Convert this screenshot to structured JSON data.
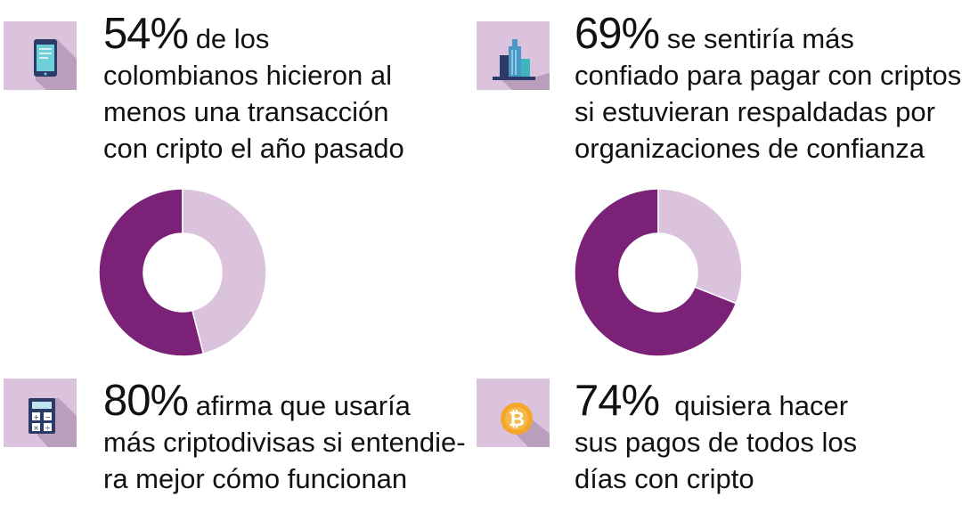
{
  "colors": {
    "primary": "#7b2278",
    "secondary": "#dcc3dd",
    "tile": "#dcc3dd"
  },
  "stats": [
    {
      "icon": "smartphone-icon",
      "percent": "54%",
      "line1": " de los",
      "rest": [
        "colombianos hicieron al",
        "menos una transacción",
        "con cripto el año pasado"
      ]
    },
    {
      "icon": "building-icon",
      "percent": "69%",
      "line1": " se sentiría más",
      "rest": [
        "confiado para pagar con criptos",
        "si estuvieran respaldadas por",
        "organizaciones de confianza"
      ]
    },
    {
      "icon": "calculator-icon",
      "percent": "80%",
      "line1": " afirma que usaría",
      "rest": [
        "más criptodivisas si entendie-",
        "ra mejor cómo funcionan"
      ]
    },
    {
      "icon": "bitcoin-icon",
      "percent": "74%",
      "line1": "  quisiera hacer",
      "rest": [
        "sus pagos de todos los",
        "días con cripto"
      ]
    }
  ],
  "chart_data": [
    {
      "type": "pie",
      "subtype": "donut",
      "values": [
        54,
        46
      ],
      "colors": [
        "#7b2278",
        "#dcc3dd"
      ]
    },
    {
      "type": "pie",
      "subtype": "donut",
      "values": [
        69,
        31
      ],
      "colors": [
        "#7b2278",
        "#dcc3dd"
      ]
    }
  ]
}
